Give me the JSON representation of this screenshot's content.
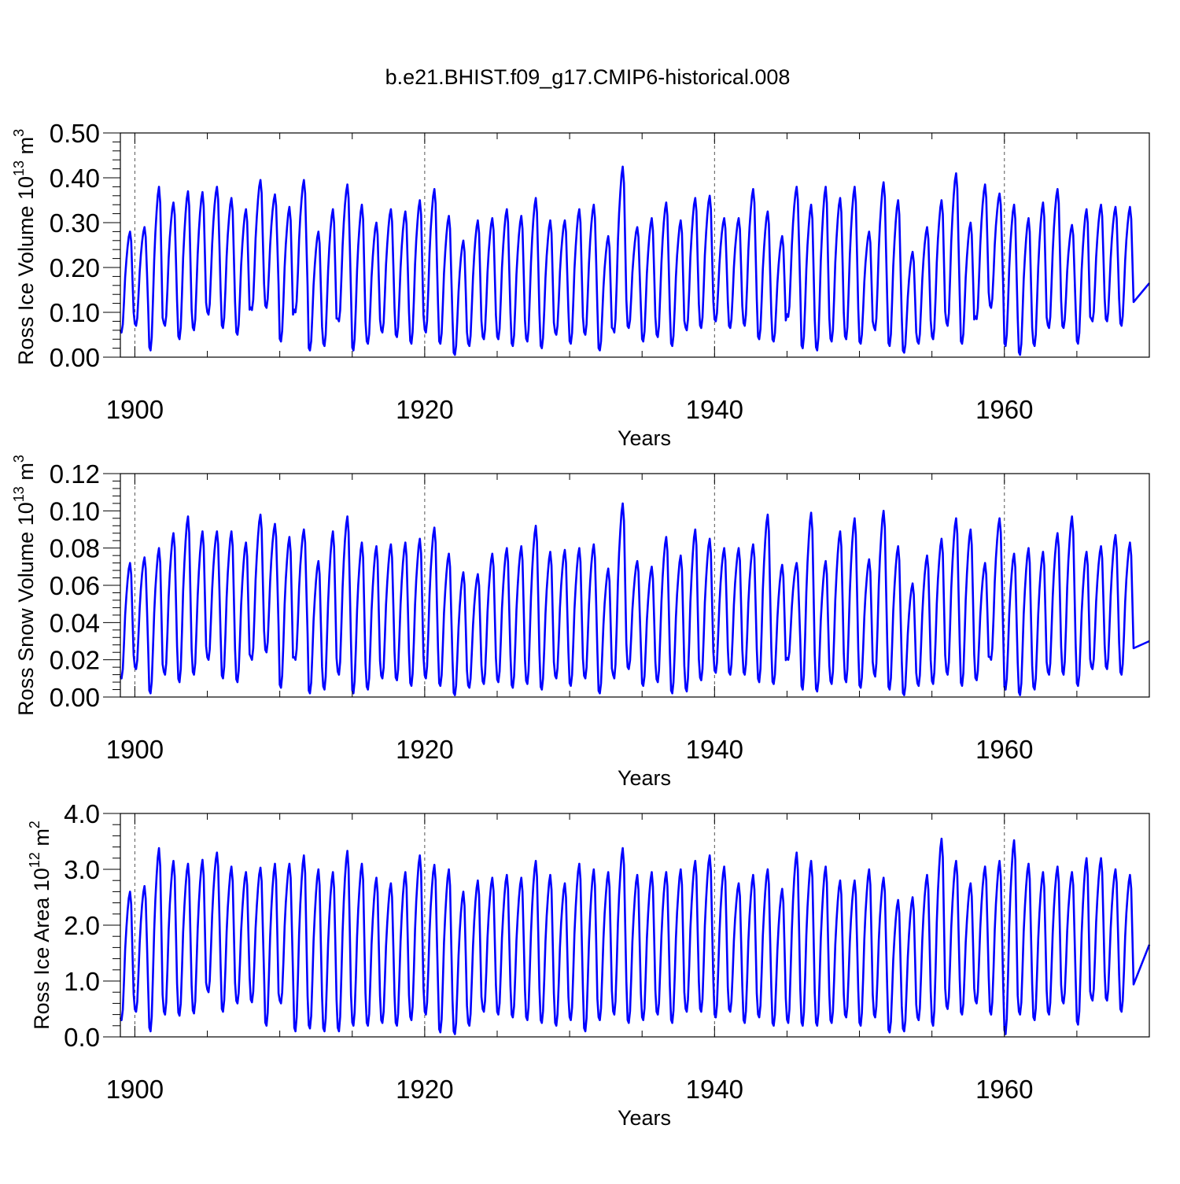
{
  "title": "b.e21.BHIST.f09_g17.CMIP6-historical.008",
  "colors": {
    "series": "#0000ff",
    "axis": "#000000",
    "refline": "#555555"
  },
  "chart_data": [
    {
      "type": "line",
      "id": "ice-volume",
      "ylabel": {
        "text": "Ross Ice Volume 10",
        "exp": "13",
        "unit": " m",
        "unit_exp": "3"
      },
      "xlabel": "Years",
      "xlim": [
        1899,
        1970
      ],
      "ylim": [
        0.0,
        0.5
      ],
      "x_ticks": [
        1900,
        1920,
        1940,
        1960
      ],
      "x_tick_labels": [
        "1900",
        "1920",
        "1940",
        "1960"
      ],
      "y_ticks": [
        0.0,
        0.1,
        0.2,
        0.3,
        0.4,
        0.5
      ],
      "y_tick_labels": [
        "0.00",
        "0.10",
        "0.20",
        "0.30",
        "0.40",
        "0.50"
      ],
      "x_start": 1899.0,
      "x_step": 0.0833,
      "maxima": [
        0.28,
        0.29,
        0.38,
        0.345,
        0.37,
        0.368,
        0.38,
        0.355,
        0.33,
        0.395,
        0.363,
        0.335,
        0.395,
        0.28,
        0.33,
        0.385,
        0.34,
        0.3,
        0.33,
        0.325,
        0.35,
        0.375,
        0.315,
        0.26,
        0.305,
        0.31,
        0.33,
        0.315,
        0.355,
        0.305,
        0.305,
        0.33,
        0.34,
        0.27,
        0.425,
        0.29,
        0.31,
        0.345,
        0.305,
        0.355,
        0.36,
        0.31,
        0.31,
        0.375,
        0.325,
        0.27,
        0.38,
        0.34,
        0.38,
        0.355,
        0.38,
        0.28,
        0.39,
        0.35,
        0.235,
        0.29,
        0.35,
        0.41,
        0.3,
        0.385,
        0.365,
        0.34,
        0.31,
        0.345,
        0.375,
        0.295,
        0.33,
        0.34,
        0.335,
        0.335
      ],
      "minima": [
        0.055,
        0.07,
        0.015,
        0.07,
        0.04,
        0.06,
        0.095,
        0.065,
        0.05,
        0.105,
        0.11,
        0.035,
        0.1,
        0.015,
        0.025,
        0.08,
        0.015,
        0.03,
        0.055,
        0.045,
        0.03,
        0.055,
        0.03,
        0.005,
        0.025,
        0.04,
        0.04,
        0.025,
        0.035,
        0.02,
        0.05,
        0.03,
        0.05,
        0.015,
        0.055,
        0.065,
        0.035,
        0.045,
        0.025,
        0.06,
        0.065,
        0.08,
        0.065,
        0.07,
        0.04,
        0.035,
        0.09,
        0.02,
        0.015,
        0.035,
        0.04,
        0.03,
        0.06,
        0.025,
        0.01,
        0.03,
        0.04,
        0.07,
        0.03,
        0.085,
        0.11,
        0.025,
        0.005,
        0.025,
        0.065,
        0.065,
        0.03,
        0.08,
        0.08,
        0.07
      ],
      "end_value": 0.165
    },
    {
      "type": "line",
      "id": "snow-volume",
      "ylabel": {
        "text": "Ross Snow Volume 10",
        "exp": "13",
        "unit": " m",
        "unit_exp": "3"
      },
      "xlabel": "Years",
      "xlim": [
        1899,
        1970
      ],
      "ylim": [
        0.0,
        0.12
      ],
      "x_ticks": [
        1900,
        1920,
        1940,
        1960
      ],
      "x_tick_labels": [
        "1900",
        "1920",
        "1940",
        "1960"
      ],
      "y_ticks": [
        0.0,
        0.02,
        0.04,
        0.06,
        0.08,
        0.1,
        0.12
      ],
      "y_tick_labels": [
        "0.00",
        "0.02",
        "0.04",
        "0.06",
        "0.08",
        "0.10",
        "0.12"
      ],
      "x_start": 1899.0,
      "x_step": 0.0833,
      "maxima": [
        0.072,
        0.075,
        0.08,
        0.088,
        0.097,
        0.089,
        0.089,
        0.089,
        0.083,
        0.098,
        0.093,
        0.086,
        0.09,
        0.073,
        0.089,
        0.097,
        0.083,
        0.081,
        0.082,
        0.083,
        0.085,
        0.091,
        0.077,
        0.067,
        0.066,
        0.077,
        0.08,
        0.081,
        0.092,
        0.078,
        0.079,
        0.08,
        0.082,
        0.069,
        0.104,
        0.073,
        0.07,
        0.086,
        0.076,
        0.09,
        0.085,
        0.08,
        0.08,
        0.082,
        0.098,
        0.071,
        0.072,
        0.099,
        0.073,
        0.089,
        0.096,
        0.074,
        0.1,
        0.081,
        0.061,
        0.076,
        0.085,
        0.096,
        0.09,
        0.072,
        0.096,
        0.077,
        0.08,
        0.078,
        0.088,
        0.097,
        0.078,
        0.081,
        0.087,
        0.083
      ],
      "minima": [
        0.01,
        0.015,
        0.002,
        0.012,
        0.008,
        0.012,
        0.02,
        0.01,
        0.008,
        0.02,
        0.024,
        0.005,
        0.02,
        0.002,
        0.004,
        0.012,
        0.002,
        0.004,
        0.01,
        0.009,
        0.006,
        0.01,
        0.006,
        0.001,
        0.005,
        0.007,
        0.008,
        0.005,
        0.007,
        0.004,
        0.01,
        0.006,
        0.01,
        0.002,
        0.01,
        0.015,
        0.006,
        0.008,
        0.002,
        0.003,
        0.009,
        0.013,
        0.012,
        0.012,
        0.008,
        0.007,
        0.02,
        0.004,
        0.003,
        0.007,
        0.008,
        0.005,
        0.011,
        0.004,
        0.001,
        0.006,
        0.007,
        0.012,
        0.006,
        0.009,
        0.02,
        0.004,
        0.001,
        0.004,
        0.012,
        0.012,
        0.006,
        0.015,
        0.015,
        0.012
      ],
      "end_value": 0.03
    },
    {
      "type": "line",
      "id": "ice-area",
      "ylabel": {
        "text": "Ross Ice Area 10",
        "exp": "12",
        "unit": " m",
        "unit_exp": "2"
      },
      "xlabel": "Years",
      "xlim": [
        1899,
        1970
      ],
      "ylim": [
        0.0,
        4.0
      ],
      "x_ticks": [
        1900,
        1920,
        1940,
        1960
      ],
      "x_tick_labels": [
        "1900",
        "1920",
        "1940",
        "1960"
      ],
      "y_ticks": [
        0.0,
        1.0,
        2.0,
        3.0,
        4.0
      ],
      "y_tick_labels": [
        "0.0",
        "1.0",
        "2.0",
        "3.0",
        "4.0"
      ],
      "x_start": 1899.0,
      "x_step": 0.0833,
      "maxima": [
        2.6,
        2.7,
        3.38,
        3.15,
        3.1,
        3.17,
        3.3,
        3.05,
        2.95,
        3.03,
        3.1,
        3.1,
        3.25,
        3.0,
        2.95,
        3.33,
        3.1,
        2.85,
        2.75,
        2.95,
        3.25,
        3.08,
        3.0,
        2.6,
        2.8,
        2.85,
        2.9,
        2.85,
        3.15,
        2.9,
        2.75,
        3.1,
        3.0,
        2.95,
        3.38,
        2.9,
        2.95,
        2.95,
        3.0,
        3.15,
        3.25,
        3.05,
        2.75,
        2.9,
        3.0,
        2.65,
        3.3,
        3.15,
        3.05,
        2.8,
        2.8,
        3.0,
        2.85,
        2.45,
        2.5,
        2.9,
        3.55,
        3.15,
        2.75,
        3.05,
        3.15,
        3.52,
        3.1,
        2.95,
        3.05,
        2.95,
        3.2,
        3.2,
        3.0,
        2.9
      ],
      "minima": [
        0.3,
        0.45,
        0.1,
        0.4,
        0.38,
        0.42,
        0.8,
        0.45,
        0.6,
        0.62,
        0.2,
        0.6,
        0.1,
        0.15,
        0.1,
        0.1,
        0.2,
        0.2,
        0.25,
        0.2,
        0.3,
        0.4,
        0.08,
        0.05,
        0.2,
        0.45,
        0.4,
        0.35,
        0.3,
        0.25,
        0.2,
        0.3,
        0.1,
        0.3,
        0.4,
        0.25,
        0.3,
        0.4,
        0.25,
        0.45,
        0.45,
        0.35,
        0.45,
        0.25,
        0.35,
        0.2,
        0.25,
        0.2,
        0.2,
        0.25,
        0.35,
        0.2,
        0.35,
        0.08,
        0.1,
        0.3,
        0.2,
        0.5,
        0.4,
        0.6,
        0.4,
        0.05,
        0.4,
        0.3,
        0.4,
        0.6,
        0.22,
        0.65,
        0.65,
        0.45
      ],
      "end_value": 1.65
    }
  ]
}
